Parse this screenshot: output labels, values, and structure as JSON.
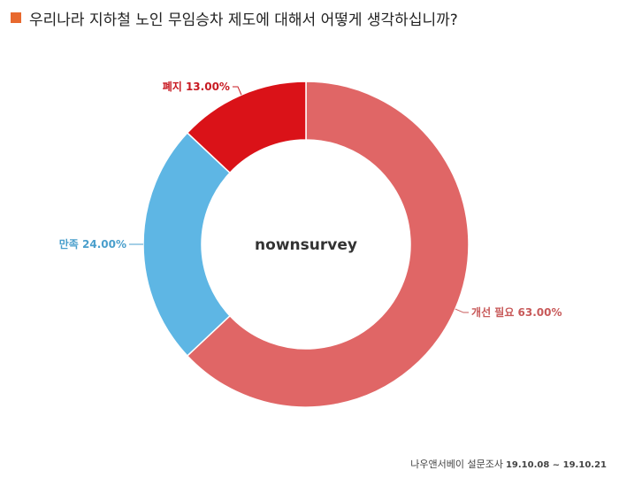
{
  "title": "우리나라 지하철 노인 무임승차 제도에 대해서 어떻게 생각하십니까?",
  "title_marker_color": "#E8692E",
  "chart_data": {
    "type": "pie",
    "variant": "donut",
    "center_label": "nownsurvey",
    "slices": [
      {
        "label": "개선 필요",
        "value": 63.0,
        "color": "#E06666",
        "label_color": "#C85A5A"
      },
      {
        "label": "만족",
        "value": 24.0,
        "color": "#5EB6E4",
        "label_color": "#4A9FCC"
      },
      {
        "label": "폐지",
        "value": 13.0,
        "color": "#DA1218",
        "label_color": "#C81A22"
      }
    ]
  },
  "footer": {
    "source": "나우앤서베이 설문조사",
    "date_range": "19.10.08 ~ 19.10.21"
  }
}
